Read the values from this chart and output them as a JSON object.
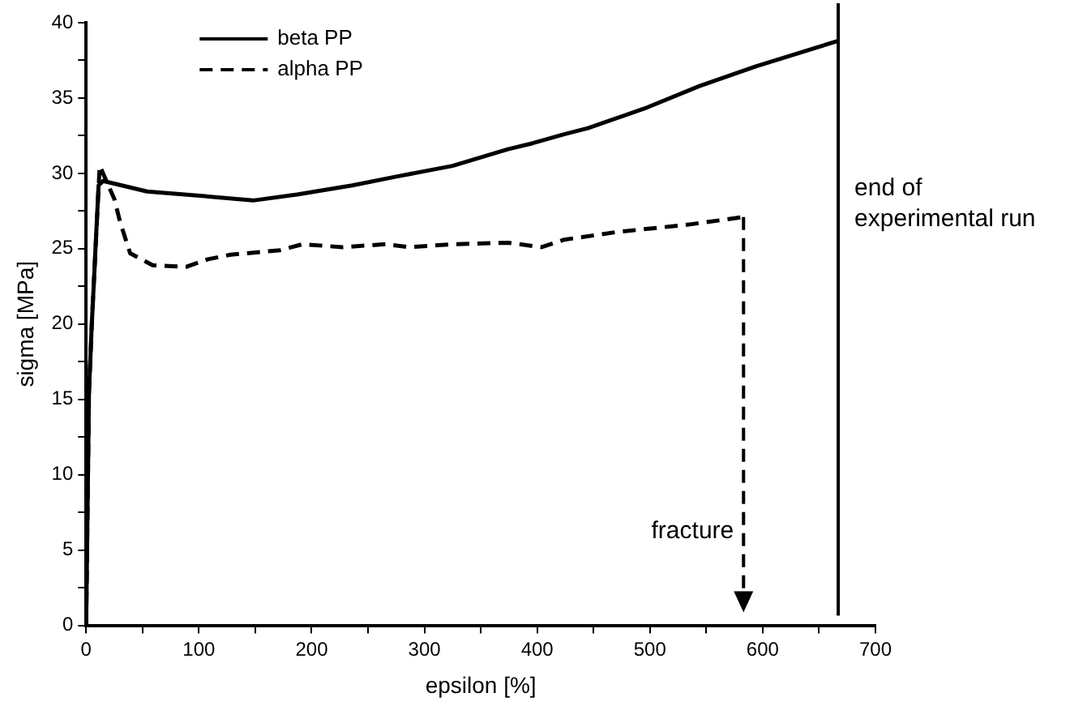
{
  "chart_data": {
    "type": "line",
    "xlabel": "epsilon [%]",
    "ylabel": "sigma [MPa]",
    "xlim": [
      0,
      700
    ],
    "xticks": [
      0,
      {
        "value": 50,
        "label": null
      },
      100,
      {
        "value": 150,
        "label": null
      },
      200,
      {
        "value": 250,
        "label": null
      },
      300,
      {
        "value": 350,
        "label": null
      },
      400,
      {
        "value": 450,
        "label": null
      },
      500,
      {
        "value": 550,
        "label": null
      },
      600,
      {
        "value": 650,
        "label": null
      },
      700
    ],
    "ylim": [
      0,
      40
    ],
    "yticks": [
      0,
      {
        "value": 2.5,
        "label": null
      },
      5,
      {
        "value": 7.5,
        "label": null
      },
      10,
      {
        "value": 12.5,
        "label": null
      },
      15,
      {
        "value": 17.5,
        "label": null
      },
      20,
      {
        "value": 22.5,
        "label": null
      },
      25,
      {
        "value": 27.5,
        "label": null
      },
      30,
      {
        "value": 32.5,
        "label": null
      },
      35,
      {
        "value": 37.5,
        "label": null
      },
      40
    ],
    "series": [
      {
        "name": "beta PP",
        "color": "#000000",
        "line_style": "solid",
        "x": [
          0,
          2.5,
          5,
          11,
          15,
          54,
          103,
          148,
          187,
          236,
          276,
          325,
          374,
          396,
          424,
          445,
          495,
          544,
          594,
          667
        ],
        "values": [
          0,
          15.5,
          20,
          29.2,
          29.5,
          28.8,
          28.5,
          28.2,
          28.6,
          29.2,
          29.8,
          30.5,
          31.6,
          32.0,
          32.6,
          33.0,
          34.3,
          35.8,
          37.1,
          38.8
        ]
      },
      {
        "name": "alpha PP",
        "color": "#000000",
        "line_style": "dashed",
        "x": [
          0,
          2.5,
          5,
          12,
          25,
          30,
          39,
          59,
          89,
          108,
          128,
          172,
          192,
          227,
          266,
          286,
          325,
          374,
          404,
          424,
          470,
          534,
          583
        ],
        "values": [
          0,
          15.5,
          20,
          30.5,
          28.3,
          26.8,
          24.7,
          23.9,
          23.8,
          24.3,
          24.6,
          24.9,
          25.3,
          25.1,
          25.3,
          25.1,
          25.3,
          25.4,
          25.1,
          25.6,
          26.1,
          26.6,
          27.1
        ]
      }
    ],
    "ref_lines": [
      {
        "axis": "x",
        "value": 667,
        "label": "end of experimental run",
        "color": "#000000",
        "line_style": "solid"
      }
    ],
    "annotations": [
      "fracture"
    ],
    "legend": "top left",
    "grid": false,
    "marker": "none"
  }
}
